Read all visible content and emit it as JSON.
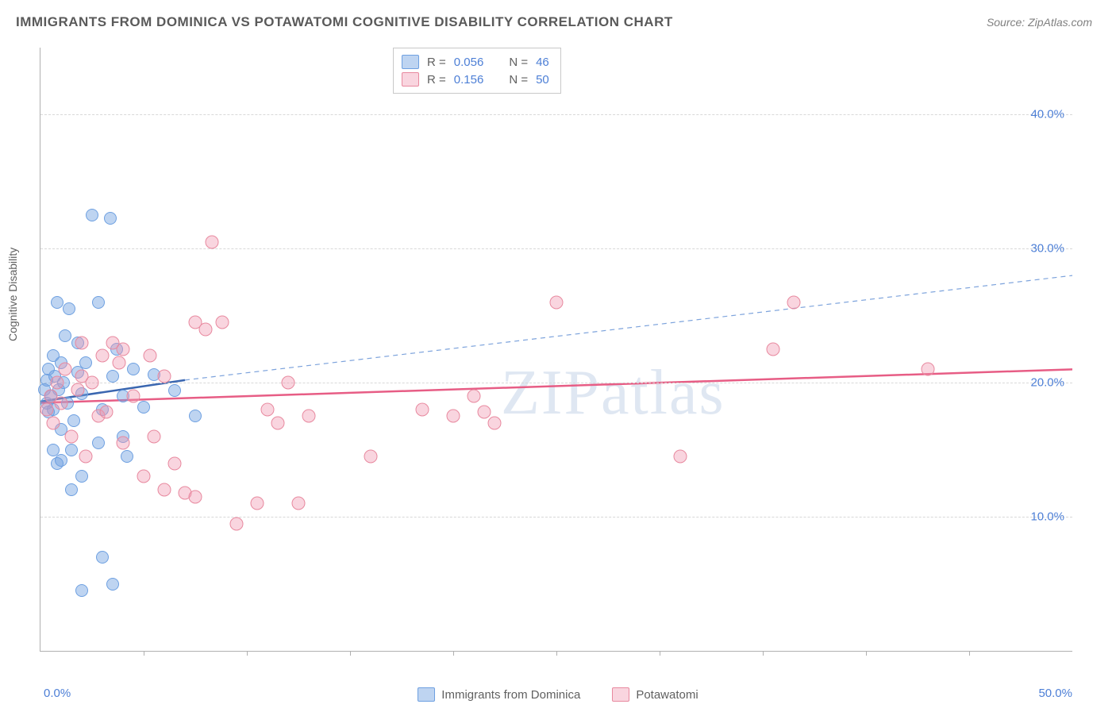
{
  "title": "IMMIGRANTS FROM DOMINICA VS POTAWATOMI COGNITIVE DISABILITY CORRELATION CHART",
  "source": "Source: ZipAtlas.com",
  "watermark": "ZIPatlas",
  "chart": {
    "type": "scatter",
    "xlim": [
      0,
      50
    ],
    "ylim": [
      0,
      45
    ],
    "xtick_left": "0.0%",
    "xtick_right": "50.0%",
    "xtick_positions": [
      5,
      10,
      15,
      20,
      25,
      30,
      35,
      40,
      45
    ],
    "yticks": [
      {
        "v": 10,
        "label": "10.0%"
      },
      {
        "v": 20,
        "label": "20.0%"
      },
      {
        "v": 30,
        "label": "30.0%"
      },
      {
        "v": 40,
        "label": "40.0%"
      }
    ],
    "ylabel": "Cognitive Disability",
    "background_color": "#ffffff",
    "grid_color": "#d8d8d8",
    "axis_color": "#b0b0b0",
    "tick_label_color": "#4d7fd6",
    "marker_size": 14,
    "series": [
      {
        "name": "Immigrants from Dominica",
        "color_fill": "rgba(110,160,225,0.45)",
        "color_stroke": "#6ea0e1",
        "r": "0.056",
        "n": "46",
        "points": [
          [
            0.2,
            19.5
          ],
          [
            0.3,
            18.5
          ],
          [
            0.3,
            20.2
          ],
          [
            0.4,
            17.8
          ],
          [
            0.4,
            21.0
          ],
          [
            0.5,
            19.0
          ],
          [
            0.6,
            22.0
          ],
          [
            0.6,
            18.0
          ],
          [
            0.7,
            20.5
          ],
          [
            0.8,
            26.0
          ],
          [
            0.8,
            14.0
          ],
          [
            0.9,
            19.5
          ],
          [
            1.0,
            21.5
          ],
          [
            1.0,
            16.5
          ],
          [
            1.1,
            20.0
          ],
          [
            1.2,
            23.5
          ],
          [
            1.3,
            18.5
          ],
          [
            1.4,
            25.5
          ],
          [
            1.5,
            15.0
          ],
          [
            1.6,
            17.2
          ],
          [
            1.8,
            20.8
          ],
          [
            2.0,
            19.2
          ],
          [
            2.0,
            13.0
          ],
          [
            2.2,
            21.5
          ],
          [
            2.5,
            32.5
          ],
          [
            2.8,
            26.0
          ],
          [
            3.0,
            18.0
          ],
          [
            3.0,
            7.0
          ],
          [
            3.4,
            32.3
          ],
          [
            3.5,
            20.5
          ],
          [
            3.7,
            22.5
          ],
          [
            4.0,
            16.0
          ],
          [
            4.0,
            19.0
          ],
          [
            4.2,
            14.5
          ],
          [
            4.5,
            21.0
          ],
          [
            5.0,
            18.2
          ],
          [
            5.5,
            20.6
          ],
          [
            3.5,
            5.0
          ],
          [
            2.0,
            4.5
          ],
          [
            1.5,
            12.0
          ],
          [
            2.8,
            15.5
          ],
          [
            0.6,
            15.0
          ],
          [
            1.0,
            14.2
          ],
          [
            7.5,
            17.5
          ],
          [
            6.5,
            19.4
          ],
          [
            1.8,
            23.0
          ]
        ],
        "trend": {
          "type": "line",
          "solid_from": [
            0,
            18.6
          ],
          "solid_to": [
            7,
            20.2
          ],
          "dash_to": [
            50,
            28.0
          ],
          "solid_color": "#3a66b0",
          "dash_color": "#7da3dc",
          "width": 2.5
        }
      },
      {
        "name": "Potawatomi",
        "color_fill": "rgba(240,150,175,0.40)",
        "color_stroke": "#e8899f",
        "r": "0.156",
        "n": "50",
        "points": [
          [
            0.3,
            18.0
          ],
          [
            0.5,
            19.0
          ],
          [
            0.6,
            17.0
          ],
          [
            0.8,
            20.0
          ],
          [
            1.0,
            18.5
          ],
          [
            1.2,
            21.0
          ],
          [
            1.5,
            16.0
          ],
          [
            1.8,
            19.5
          ],
          [
            2.0,
            23.0
          ],
          [
            2.2,
            14.5
          ],
          [
            2.5,
            20.0
          ],
          [
            2.8,
            17.5
          ],
          [
            3.0,
            22.0
          ],
          [
            3.5,
            23.0
          ],
          [
            3.8,
            21.5
          ],
          [
            4.0,
            15.5
          ],
          [
            4.5,
            19.0
          ],
          [
            5.0,
            13.0
          ],
          [
            5.3,
            22.0
          ],
          [
            5.5,
            16.0
          ],
          [
            6.0,
            20.5
          ],
          [
            6.5,
            14.0
          ],
          [
            7.0,
            11.8
          ],
          [
            7.5,
            24.5
          ],
          [
            8.0,
            24.0
          ],
          [
            8.3,
            30.5
          ],
          [
            8.8,
            24.5
          ],
          [
            9.5,
            9.5
          ],
          [
            10.5,
            11.0
          ],
          [
            11.0,
            18.0
          ],
          [
            11.5,
            17.0
          ],
          [
            12.0,
            20.0
          ],
          [
            12.5,
            11.0
          ],
          [
            13.0,
            17.5
          ],
          [
            16.0,
            14.5
          ],
          [
            18.5,
            18.0
          ],
          [
            20.0,
            17.5
          ],
          [
            21.0,
            19.0
          ],
          [
            21.5,
            17.8
          ],
          [
            22.0,
            17.0
          ],
          [
            25.0,
            26.0
          ],
          [
            31.0,
            14.5
          ],
          [
            35.5,
            22.5
          ],
          [
            36.5,
            26.0
          ],
          [
            43.0,
            21.0
          ],
          [
            6.0,
            12.0
          ],
          [
            4.0,
            22.5
          ],
          [
            3.2,
            17.8
          ],
          [
            2.0,
            20.5
          ],
          [
            7.5,
            11.5
          ]
        ],
        "trend": {
          "type": "line",
          "solid_from": [
            0,
            18.5
          ],
          "solid_to": [
            50,
            21.0
          ],
          "solid_color": "#e75d85",
          "width": 2.5
        }
      }
    ],
    "legend_box": {
      "r_label": "R =",
      "n_label": "N ="
    },
    "bottom_legend": [
      {
        "swatch": "blue",
        "label": "Immigrants from Dominica"
      },
      {
        "swatch": "pink",
        "label": "Potawatomi"
      }
    ]
  }
}
